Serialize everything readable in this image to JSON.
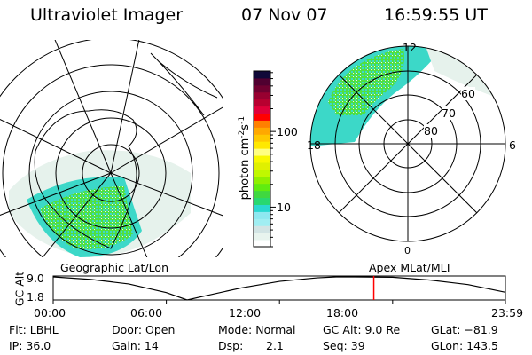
{
  "header": {
    "instrument": "Ultraviolet Imager",
    "date": "07 Nov 07",
    "time": "16:59:55 UT"
  },
  "left_map": {
    "label": "Geographic Lat/Lon"
  },
  "right_map": {
    "label": "Apex MLat/MLT",
    "lat_rings": [
      "80",
      "70",
      "60"
    ],
    "mlt_labels": {
      "top": "12",
      "bottom": "0",
      "left": "18",
      "right": "6"
    }
  },
  "colorbar": {
    "unit_prefix": "photon cm",
    "unit_sup1": "-2",
    "unit_mid": "s",
    "unit_sup2": "-1",
    "scale": "log",
    "ticks": [
      "100",
      "10"
    ],
    "range": [
      3,
      630
    ],
    "colors": [
      "#ffffff",
      "#e8f4ee",
      "#d2e4e4",
      "#a0eef2",
      "#8ee8f0",
      "#2ad8d0",
      "#28d870",
      "#40d840",
      "#60ec10",
      "#90f000",
      "#c0f800",
      "#e0f000",
      "#f8f800",
      "#ffff80",
      "#ffe800",
      "#ffc800",
      "#ffa800",
      "#ff8000",
      "#ff0000",
      "#e0003a",
      "#b80030",
      "#980030",
      "#700030",
      "#500030",
      "#100838"
    ]
  },
  "chart_data": {
    "type": "line",
    "ylabel": "GC Alt",
    "ytick_labels": [
      "9.0",
      "1.8"
    ],
    "ylim": [
      1.8,
      9.0
    ],
    "xtick_labels": [
      "00:00",
      "06:00",
      "12:00",
      "18:00",
      "23:59"
    ],
    "xlim_hours": [
      0,
      23.98
    ],
    "x_hours": [
      0,
      2,
      4,
      6,
      7.1,
      8,
      10,
      12,
      14,
      15,
      16,
      18,
      20,
      22,
      23.98
    ],
    "values": [
      9.0,
      8.2,
      6.8,
      4.1,
      1.8,
      3.0,
      5.6,
      7.6,
      8.7,
      9.0,
      9.0,
      8.9,
      8.0,
      6.6,
      4.2
    ],
    "current_time_hours": 17.0,
    "current_marker_color": "#ff0000"
  },
  "status": {
    "flt": "Flt: LBHL",
    "ip": "IP: 36.0",
    "door": "Door: Open",
    "gain": "Gain: 14",
    "mode": "Mode: Normal",
    "dsp_label": "Dsp:",
    "dsp_value": "2.1",
    "gc_alt": "GC Alt: 9.0 Re",
    "seq": "Seq: 39",
    "glat": "GLat: −81.9",
    "glon": "GLon: 143.5"
  }
}
